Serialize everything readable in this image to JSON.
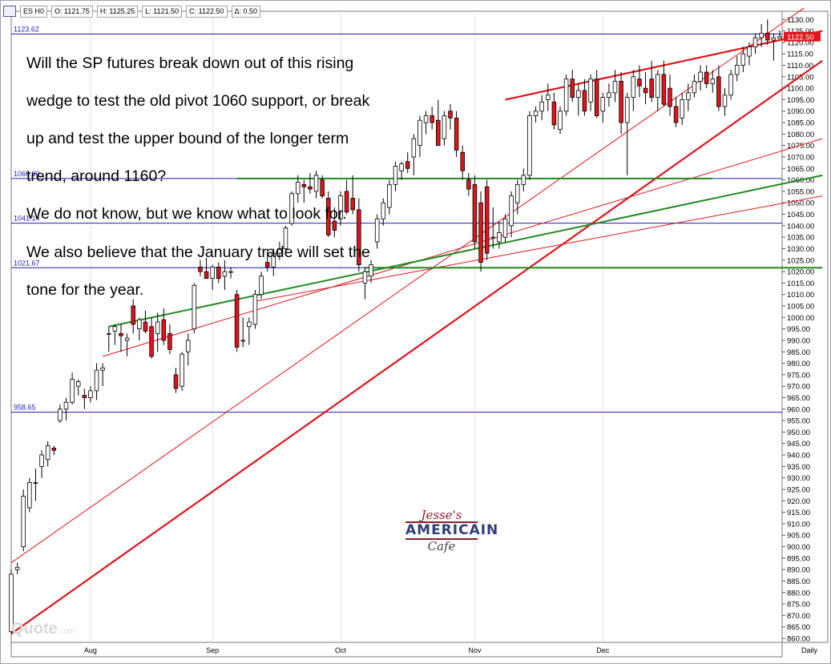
{
  "header": {
    "symbol": "ES H0",
    "open": "O: 1121.75",
    "high": "H: 1125.25",
    "low": "L: 1121.50",
    "close": "C: 1122.50",
    "delta": "Δ: 0.50"
  },
  "annotation_lines": [
    "Will the SP futures break down out of this rising",
    "wedge to test the old pivot 1060 support, or break",
    "up and test the upper bound of the longer term",
    "trend, around 1160?",
    "We do not know, but we know what to look for.",
    "We also believe that the January trade will set the",
    "tone for the year."
  ],
  "watermark": {
    "line1": "Jesse's",
    "line2": "AMERICAIN",
    "line3": "Cafe"
  },
  "quote_watermark": "Quote",
  "quote_watermark_suffix": ".com",
  "chart_data": {
    "type": "candlestick",
    "timeframe_label": "Daily",
    "ylim": [
      860,
      1130
    ],
    "y_ticks": [
      860,
      865,
      870,
      875,
      880,
      885,
      890,
      895,
      900,
      905,
      910,
      915,
      920,
      925,
      930,
      935,
      940,
      945,
      950,
      955,
      960,
      965,
      970,
      975,
      980,
      985,
      990,
      995,
      1000,
      1005,
      1010,
      1015,
      1020,
      1025,
      1030,
      1035,
      1040,
      1045,
      1050,
      1055,
      1060,
      1065,
      1070,
      1075,
      1080,
      1085,
      1090,
      1095,
      1100,
      1105,
      1110,
      1115,
      1120,
      1125,
      1130
    ],
    "x_labels": [
      "Aug",
      "Sep",
      "Oct",
      "Nov",
      "Dec"
    ],
    "current_price": "1122.50",
    "colors": {
      "up": "#ffffff",
      "down": "#e0141b",
      "wick": "#000000",
      "grid": "#e4e4e4",
      "hline": "#1f1fb0",
      "trend_red": "#e0141b",
      "trend_green": "#1f8a1f"
    },
    "horizontal_levels": [
      {
        "label": "1123.62",
        "value": 1123.62
      },
      {
        "label": "1060.60",
        "value": 1060.6
      },
      {
        "label": "1041.14",
        "value": 1041.14
      },
      {
        "label": "1021.67",
        "value": 1021.67
      },
      {
        "label": "958.65",
        "value": 958.65
      }
    ],
    "candles": [
      {
        "o": 863,
        "h": 890,
        "l": 862,
        "c": 888
      },
      {
        "o": 890,
        "h": 893,
        "l": 888,
        "c": 891
      },
      {
        "o": 900,
        "h": 925,
        "l": 898,
        "c": 922
      },
      {
        "o": 917,
        "h": 930,
        "l": 915,
        "c": 928
      },
      {
        "o": 928,
        "h": 934,
        "l": 920,
        "c": 928
      },
      {
        "o": 935,
        "h": 942,
        "l": 930,
        "c": 940
      },
      {
        "o": 938,
        "h": 946,
        "l": 935,
        "c": 944
      },
      {
        "o": 943,
        "h": 944,
        "l": 940,
        "c": 942
      },
      {
        "o": 955,
        "h": 962,
        "l": 954,
        "c": 960
      },
      {
        "o": 960,
        "h": 965,
        "l": 955,
        "c": 963
      },
      {
        "o": 963,
        "h": 976,
        "l": 962,
        "c": 973
      },
      {
        "o": 970,
        "h": 973,
        "l": 966,
        "c": 972
      },
      {
        "o": 966,
        "h": 969,
        "l": 960,
        "c": 965
      },
      {
        "o": 965,
        "h": 970,
        "l": 963,
        "c": 968
      },
      {
        "o": 968,
        "h": 980,
        "l": 964,
        "c": 977
      },
      {
        "o": 977,
        "h": 980,
        "l": 970,
        "c": 978
      },
      {
        "o": 993,
        "h": 996,
        "l": 985,
        "c": 993
      },
      {
        "o": 994,
        "h": 997,
        "l": 988,
        "c": 996
      },
      {
        "o": 993,
        "h": 997,
        "l": 985,
        "c": 992
      },
      {
        "o": 990,
        "h": 993,
        "l": 983,
        "c": 991
      },
      {
        "o": 1005,
        "h": 1008,
        "l": 993,
        "c": 997
      },
      {
        "o": 995,
        "h": 1000,
        "l": 990,
        "c": 999
      },
      {
        "o": 998,
        "h": 1003,
        "l": 993,
        "c": 994
      },
      {
        "o": 996,
        "h": 1000,
        "l": 982,
        "c": 983
      },
      {
        "o": 993,
        "h": 1002,
        "l": 985,
        "c": 998
      },
      {
        "o": 999,
        "h": 1004,
        "l": 988,
        "c": 990
      },
      {
        "o": 993,
        "h": 997,
        "l": 984,
        "c": 986
      },
      {
        "o": 975,
        "h": 978,
        "l": 967,
        "c": 969
      },
      {
        "o": 970,
        "h": 985,
        "l": 968,
        "c": 984
      },
      {
        "o": 985,
        "h": 993,
        "l": 979,
        "c": 990
      },
      {
        "o": 995,
        "h": 1015,
        "l": 993,
        "c": 1014
      },
      {
        "o": 1022,
        "h": 1025,
        "l": 1018,
        "c": 1020
      },
      {
        "o": 1020,
        "h": 1026,
        "l": 1017,
        "c": 1017
      },
      {
        "o": 1017,
        "h": 1023,
        "l": 1012,
        "c": 1022
      },
      {
        "o": 1022,
        "h": 1024,
        "l": 1015,
        "c": 1017
      },
      {
        "o": 1018,
        "h": 1025,
        "l": 1012,
        "c": 1020
      },
      {
        "o": 1020,
        "h": 1022,
        "l": 1017,
        "c": 1020
      },
      {
        "o": 1010,
        "h": 1012,
        "l": 985,
        "c": 987
      },
      {
        "o": 990,
        "h": 1000,
        "l": 987,
        "c": 990
      },
      {
        "o": 996,
        "h": 1000,
        "l": 988,
        "c": 998
      },
      {
        "o": 997,
        "h": 1012,
        "l": 995,
        "c": 1010
      },
      {
        "o": 1010,
        "h": 1020,
        "l": 1008,
        "c": 1018
      },
      {
        "o": 1024,
        "h": 1030,
        "l": 1020,
        "c": 1022
      },
      {
        "o": 1022,
        "h": 1030,
        "l": 1018,
        "c": 1028
      },
      {
        "o": 1028,
        "h": 1033,
        "l": 1025,
        "c": 1030
      },
      {
        "o": 1030,
        "h": 1040,
        "l": 1028,
        "c": 1039
      },
      {
        "o": 1041,
        "h": 1055,
        "l": 1040,
        "c": 1054
      },
      {
        "o": 1054,
        "h": 1062,
        "l": 1050,
        "c": 1059
      },
      {
        "o": 1058,
        "h": 1060,
        "l": 1050,
        "c": 1057
      },
      {
        "o": 1057,
        "h": 1063,
        "l": 1054,
        "c": 1056
      },
      {
        "o": 1055,
        "h": 1064,
        "l": 1052,
        "c": 1062
      },
      {
        "o": 1060,
        "h": 1062,
        "l": 1052,
        "c": 1053
      },
      {
        "o": 1052,
        "h": 1055,
        "l": 1035,
        "c": 1036
      },
      {
        "o": 1042,
        "h": 1048,
        "l": 1035,
        "c": 1038
      },
      {
        "o": 1043,
        "h": 1055,
        "l": 1040,
        "c": 1053
      },
      {
        "o": 1055,
        "h": 1060,
        "l": 1045,
        "c": 1046
      },
      {
        "o": 1052,
        "h": 1062,
        "l": 1045,
        "c": 1047
      },
      {
        "o": 1047,
        "h": 1052,
        "l": 1020,
        "c": 1023
      },
      {
        "o": 1015,
        "h": 1022,
        "l": 1008,
        "c": 1020
      },
      {
        "o": 1018,
        "h": 1025,
        "l": 1015,
        "c": 1023
      },
      {
        "o": 1033,
        "h": 1045,
        "l": 1030,
        "c": 1043
      },
      {
        "o": 1043,
        "h": 1052,
        "l": 1040,
        "c": 1050
      },
      {
        "o": 1048,
        "h": 1060,
        "l": 1045,
        "c": 1058
      },
      {
        "o": 1058,
        "h": 1068,
        "l": 1055,
        "c": 1066
      },
      {
        "o": 1064,
        "h": 1068,
        "l": 1060,
        "c": 1067
      },
      {
        "o": 1068,
        "h": 1072,
        "l": 1063,
        "c": 1065
      },
      {
        "o": 1070,
        "h": 1080,
        "l": 1062,
        "c": 1078
      },
      {
        "o": 1075,
        "h": 1088,
        "l": 1070,
        "c": 1086
      },
      {
        "o": 1085,
        "h": 1090,
        "l": 1080,
        "c": 1088
      },
      {
        "o": 1088,
        "h": 1092,
        "l": 1082,
        "c": 1085
      },
      {
        "o": 1086,
        "h": 1095,
        "l": 1075,
        "c": 1075
      },
      {
        "o": 1078,
        "h": 1090,
        "l": 1075,
        "c": 1088
      },
      {
        "o": 1090,
        "h": 1093,
        "l": 1082,
        "c": 1087
      },
      {
        "o": 1087,
        "h": 1090,
        "l": 1070,
        "c": 1073
      },
      {
        "o": 1072,
        "h": 1075,
        "l": 1060,
        "c": 1064
      },
      {
        "o": 1060,
        "h": 1063,
        "l": 1053,
        "c": 1056
      },
      {
        "o": 1058,
        "h": 1062,
        "l": 1030,
        "c": 1033
      },
      {
        "o": 1050,
        "h": 1055,
        "l": 1020,
        "c": 1024
      },
      {
        "o": 1057,
        "h": 1060,
        "l": 1025,
        "c": 1028
      },
      {
        "o": 1035,
        "h": 1048,
        "l": 1030,
        "c": 1035
      },
      {
        "o": 1033,
        "h": 1042,
        "l": 1030,
        "c": 1037
      },
      {
        "o": 1035,
        "h": 1045,
        "l": 1033,
        "c": 1043
      },
      {
        "o": 1040,
        "h": 1055,
        "l": 1035,
        "c": 1053
      },
      {
        "o": 1050,
        "h": 1060,
        "l": 1045,
        "c": 1058
      },
      {
        "o": 1058,
        "h": 1065,
        "l": 1055,
        "c": 1062
      },
      {
        "o": 1062,
        "h": 1090,
        "l": 1060,
        "c": 1088
      },
      {
        "o": 1088,
        "h": 1092,
        "l": 1085,
        "c": 1090
      },
      {
        "o": 1090,
        "h": 1097,
        "l": 1086,
        "c": 1094
      },
      {
        "o": 1095,
        "h": 1102,
        "l": 1090,
        "c": 1097
      },
      {
        "o": 1094,
        "h": 1098,
        "l": 1082,
        "c": 1084
      },
      {
        "o": 1082,
        "h": 1092,
        "l": 1080,
        "c": 1090
      },
      {
        "o": 1090,
        "h": 1106,
        "l": 1088,
        "c": 1104
      },
      {
        "o": 1104,
        "h": 1108,
        "l": 1094,
        "c": 1096
      },
      {
        "o": 1096,
        "h": 1102,
        "l": 1088,
        "c": 1099
      },
      {
        "o": 1099,
        "h": 1104,
        "l": 1088,
        "c": 1090
      },
      {
        "o": 1094,
        "h": 1106,
        "l": 1090,
        "c": 1104
      },
      {
        "o": 1104,
        "h": 1108,
        "l": 1087,
        "c": 1088
      },
      {
        "o": 1090,
        "h": 1098,
        "l": 1085,
        "c": 1096
      },
      {
        "o": 1096,
        "h": 1102,
        "l": 1092,
        "c": 1098
      },
      {
        "o": 1098,
        "h": 1108,
        "l": 1094,
        "c": 1103
      },
      {
        "o": 1103,
        "h": 1107,
        "l": 1080,
        "c": 1085
      },
      {
        "o": 1085,
        "h": 1098,
        "l": 1062,
        "c": 1096
      },
      {
        "o": 1096,
        "h": 1108,
        "l": 1090,
        "c": 1105
      },
      {
        "o": 1104,
        "h": 1110,
        "l": 1096,
        "c": 1101
      },
      {
        "o": 1100,
        "h": 1107,
        "l": 1093,
        "c": 1098
      },
      {
        "o": 1104,
        "h": 1112,
        "l": 1094,
        "c": 1096
      },
      {
        "o": 1096,
        "h": 1108,
        "l": 1090,
        "c": 1106
      },
      {
        "o": 1106,
        "h": 1112,
        "l": 1092,
        "c": 1093
      },
      {
        "o": 1100,
        "h": 1106,
        "l": 1088,
        "c": 1092
      },
      {
        "o": 1092,
        "h": 1096,
        "l": 1083,
        "c": 1085
      },
      {
        "o": 1087,
        "h": 1098,
        "l": 1084,
        "c": 1095
      },
      {
        "o": 1095,
        "h": 1102,
        "l": 1090,
        "c": 1098
      },
      {
        "o": 1098,
        "h": 1106,
        "l": 1096,
        "c": 1103
      },
      {
        "o": 1103,
        "h": 1110,
        "l": 1099,
        "c": 1107
      },
      {
        "o": 1107,
        "h": 1110,
        "l": 1100,
        "c": 1102
      },
      {
        "o": 1102,
        "h": 1108,
        "l": 1098,
        "c": 1104
      },
      {
        "o": 1105,
        "h": 1110,
        "l": 1090,
        "c": 1092
      },
      {
        "o": 1092,
        "h": 1100,
        "l": 1088,
        "c": 1097
      },
      {
        "o": 1097,
        "h": 1108,
        "l": 1095,
        "c": 1106
      },
      {
        "o": 1106,
        "h": 1114,
        "l": 1103,
        "c": 1110
      },
      {
        "o": 1110,
        "h": 1118,
        "l": 1107,
        "c": 1115
      },
      {
        "o": 1114,
        "h": 1120,
        "l": 1110,
        "c": 1118
      },
      {
        "o": 1118,
        "h": 1124,
        "l": 1115,
        "c": 1122
      },
      {
        "o": 1122,
        "h": 1128,
        "l": 1118,
        "c": 1124
      },
      {
        "o": 1124,
        "h": 1130,
        "l": 1119,
        "c": 1121
      },
      {
        "o": 1121,
        "h": 1124,
        "l": 1112,
        "c": 1122
      },
      {
        "o": 1121.75,
        "h": 1125.25,
        "l": 1121.5,
        "c": 1122.5
      }
    ],
    "trend_lines": [
      {
        "kind": "red-thin",
        "from": [
          0,
          893
        ],
        "to": [
          130,
          1135
        ]
      },
      {
        "kind": "red-thick",
        "from": [
          0,
          862
        ],
        "to": [
          133,
          1112
        ]
      },
      {
        "kind": "red-thick",
        "from": [
          81,
          1095
        ],
        "to": [
          133,
          1125
        ]
      },
      {
        "kind": "red-thin",
        "from": [
          15,
          983
        ],
        "to": [
          133,
          1078
        ]
      },
      {
        "kind": "red-thin",
        "from": [
          40,
          1007
        ],
        "to": [
          133,
          1053
        ]
      },
      {
        "kind": "green",
        "from": [
          16,
          996
        ],
        "to": [
          133,
          1062
        ]
      },
      {
        "kind": "green-flat",
        "from": [
          58,
          1021.67
        ],
        "to": [
          133,
          1021.67
        ]
      },
      {
        "kind": "green-flat",
        "from": [
          37,
          1060.6
        ],
        "to": [
          115,
          1060.6
        ]
      }
    ]
  }
}
